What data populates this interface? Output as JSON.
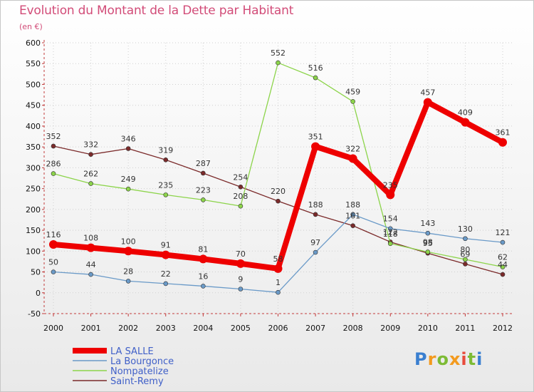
{
  "header": {
    "title": "Evolution du Montant de la Dette par Habitant",
    "unit": "(en €)"
  },
  "logo": {
    "text": "Proxiti"
  },
  "chart_data": {
    "type": "line",
    "title": "Evolution du Montant de la Dette par Habitant",
    "ylabel": "(en €)",
    "xlabel": "",
    "ylim": [
      -50,
      600
    ],
    "yticks": [
      -50,
      0,
      50,
      100,
      150,
      200,
      250,
      300,
      350,
      400,
      450,
      500,
      550,
      600
    ],
    "grid": true,
    "legend_position": "bottom-left",
    "categories": [
      "2000",
      "2001",
      "2002",
      "2003",
      "2004",
      "2005",
      "2006",
      "2007",
      "2008",
      "2009",
      "2010",
      "2011",
      "2012"
    ],
    "series": [
      {
        "name": "Saint-Remy",
        "color": "#7b2a2a",
        "values": [
          352,
          332,
          346,
          319,
          287,
          254,
          220,
          188,
          161,
          122,
          95,
          69,
          44
        ]
      },
      {
        "name": "Nompatelize",
        "color": "#8cd44a",
        "values": [
          286,
          262,
          249,
          235,
          223,
          208,
          552,
          516,
          459,
          118,
          98,
          80,
          62
        ]
      },
      {
        "name": "La Bourgonce",
        "color": "#6a9ac8",
        "values": [
          50,
          44,
          28,
          22,
          16,
          9,
          1,
          97,
          188,
          154,
          143,
          130,
          121
        ]
      },
      {
        "name": "LA SALLE",
        "color": "#ee0000",
        "values": [
          116,
          108,
          100,
          91,
          81,
          70,
          58,
          351,
          322,
          235,
          457,
          409,
          361
        ]
      }
    ],
    "legend": [
      "LA SALLE",
      "La Bourgonce",
      "Nompatelize",
      "Saint-Remy"
    ]
  }
}
